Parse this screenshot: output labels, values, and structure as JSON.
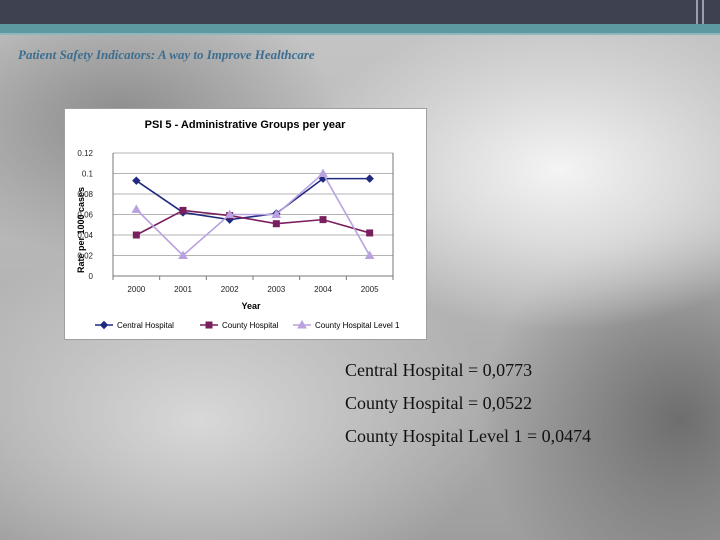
{
  "slide": {
    "header_title": "Patient Safety Indicators: A way to Improve Healthcare"
  },
  "stats": [
    "Central Hospital = 0,0773",
    "County Hospital = 0,0522",
    "County Hospital Level 1 = 0,0474"
  ],
  "chart_data": {
    "type": "line",
    "title": "PSI 5 - Administrative Groups per year",
    "xlabel": "Year",
    "ylabel": "Rate per 1000 cases",
    "categories": [
      "2000",
      "2001",
      "2002",
      "2003",
      "2004",
      "2005"
    ],
    "ylim": [
      0,
      0.12
    ],
    "yticks": [
      0,
      0.02,
      0.04,
      0.06,
      0.08,
      0.1,
      0.12
    ],
    "ytick_labels": [
      "0",
      "0.02",
      "0.04",
      "0.06",
      "0.08",
      "0.1",
      "0.12"
    ],
    "grid": "horizontal",
    "legend_position": "bottom",
    "series": [
      {
        "name": "Central Hospital",
        "color": "#1f2a80",
        "marker": "diamond",
        "values": [
          0.093,
          0.062,
          0.055,
          0.061,
          0.095,
          0.095
        ]
      },
      {
        "name": "County Hospital",
        "color": "#7a1f5e",
        "marker": "square",
        "values": [
          0.04,
          0.064,
          0.059,
          0.051,
          0.055,
          0.042
        ]
      },
      {
        "name": "County Hospital Level 1",
        "color": "#b9a2e0",
        "marker": "triangle",
        "values": [
          0.065,
          0.02,
          0.06,
          0.06,
          0.1,
          0.02
        ]
      }
    ]
  }
}
